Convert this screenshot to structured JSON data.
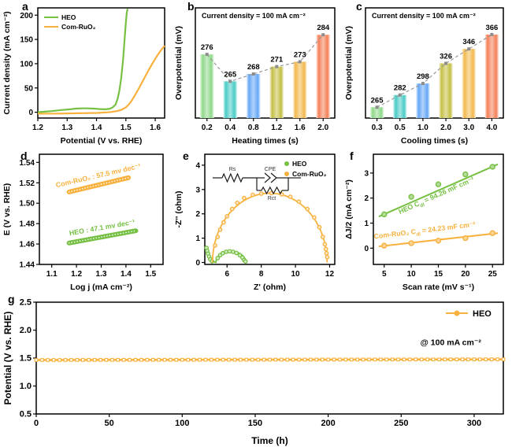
{
  "colors": {
    "heo_green": "#76c043",
    "ruo2_orange": "#f8b13d",
    "connector_gray": "#999999",
    "axis_black": "#000000"
  },
  "chart_data": [
    {
      "id": "a",
      "panel_label": "a",
      "type": "line",
      "xlabel": "Potential (V vs. RHE)",
      "ylabel": "Current density (mA cm⁻²)",
      "xlim": [
        1.2,
        1.632
      ],
      "ylim": [
        -12,
        215
      ],
      "xticks": [
        "1.2",
        "1.3",
        "1.4",
        "1.5",
        "1.6"
      ],
      "yticks": [
        "0",
        "50",
        "100",
        "150",
        "200"
      ],
      "legend": {
        "position": "top-left",
        "entries": [
          {
            "label": "HEO",
            "color": "#76c043"
          },
          {
            "label": "Com-RuO₂",
            "color": "#f8b13d"
          }
        ]
      },
      "series": [
        {
          "name": "HEO",
          "color": "#76c043",
          "x": [
            1.2,
            1.22,
            1.25,
            1.28,
            1.31,
            1.33,
            1.35,
            1.37,
            1.39,
            1.41,
            1.43,
            1.445,
            1.455,
            1.465,
            1.472,
            1.478,
            1.484,
            1.49,
            1.495,
            1.5,
            1.503,
            1.506
          ],
          "y": [
            0,
            1,
            2.5,
            4.5,
            6,
            7.5,
            8,
            8,
            7.5,
            6.5,
            6,
            7,
            10,
            16,
            28,
            45,
            70,
            105,
            145,
            185,
            205,
            213
          ]
        },
        {
          "name": "Com-RuO₂",
          "color": "#f8b13d",
          "x": [
            1.2,
            1.25,
            1.3,
            1.35,
            1.4,
            1.43,
            1.45,
            1.47,
            1.485,
            1.5,
            1.51,
            1.52,
            1.53,
            1.545,
            1.56,
            1.575,
            1.59,
            1.605,
            1.62,
            1.632
          ],
          "y": [
            -3,
            -3,
            -2.5,
            -2,
            -1.5,
            -0.5,
            0.5,
            2.5,
            5,
            10,
            16,
            24,
            34,
            50,
            67,
            84,
            100,
            115,
            128,
            137
          ]
        }
      ]
    },
    {
      "id": "b",
      "panel_label": "b",
      "type": "bar",
      "title": "Current density = 100 mA cm⁻²",
      "xlabel": "Heating times (s)",
      "ylabel": "Overpotential (mV)",
      "categories": [
        "0.2",
        "0.4",
        "0.8",
        "1.2",
        "1.6",
        "2.0"
      ],
      "values": [
        276,
        265,
        268,
        271,
        273,
        284
      ],
      "ylim": [
        250,
        295
      ],
      "bar_colors": [
        "#8ed98a",
        "#49cbc6",
        "#64a7f7",
        "#c4bf45",
        "#f2b84d",
        "#f57e56"
      ]
    },
    {
      "id": "c",
      "panel_label": "c",
      "type": "bar",
      "title": "Current density = 100 mA cm⁻²",
      "xlabel": "Cooling times (s)",
      "ylabel": "Overpotential (mV)",
      "categories": [
        "0.3",
        "0.5",
        "1.0",
        "2.0",
        "3.0",
        "4.0"
      ],
      "values": [
        265,
        282,
        298,
        326,
        346,
        366
      ],
      "ylim": [
        250,
        403
      ],
      "bar_colors": [
        "#8ed98a",
        "#49cbc6",
        "#64a7f7",
        "#c4bf45",
        "#f2b84d",
        "#f57e56"
      ]
    },
    {
      "id": "d",
      "panel_label": "d",
      "type": "tafel",
      "xlabel": "Log j (mA cm⁻²)",
      "ylabel": "E (V vs. RHE)",
      "xlim": [
        1.05,
        1.55
      ],
      "ylim": [
        1.44,
        1.548
      ],
      "xticks": [
        "1.1",
        "1.2",
        "1.3",
        "1.4",
        "1.5"
      ],
      "yticks": [
        "1.44",
        "1.46",
        "1.48",
        "1.50",
        "1.52",
        "1.54"
      ],
      "series": [
        {
          "name": "Com-RuO₂",
          "color": "#f8b13d",
          "x0": 1.17,
          "y0": 1.511,
          "x1": 1.41,
          "y1": 1.525,
          "label": "Com-RuO₂ : 57.5 mv dec⁻¹",
          "label_angle": -13
        },
        {
          "name": "HEO",
          "color": "#76c043",
          "x0": 1.17,
          "y0": 1.461,
          "x1": 1.44,
          "y1": 1.473,
          "label": "HEO : 47.1 mv dec⁻¹",
          "label_angle": -10
        }
      ]
    },
    {
      "id": "e",
      "panel_label": "e",
      "type": "nyquist",
      "xlabel": "Z' (ohm)",
      "ylabel": "-Z'' (ohm)",
      "xlim": [
        4.7,
        12.3
      ],
      "ylim": [
        -0.08,
        4.45
      ],
      "xticks": [
        "6",
        "8",
        "10",
        "12"
      ],
      "yticks": [
        "0",
        "1",
        "2",
        "3",
        "4"
      ],
      "legend": {
        "position": "top-right",
        "entries": [
          {
            "label": "HEO",
            "color": "#76c043"
          },
          {
            "label": "Com-RuO₂",
            "color": "#f8b13d"
          }
        ]
      },
      "inset": {
        "labels": {
          "rs": "Rs",
          "cpe": "CPE",
          "rct": "Rct"
        }
      },
      "series": [
        {
          "name": "HEO",
          "color": "#76c043",
          "fit_pre": [
            [
              4.78,
              0.62
            ],
            [
              4.85,
              0.45
            ],
            [
              4.92,
              0.3
            ],
            [
              5.0,
              0.17
            ],
            [
              5.1,
              0.07
            ],
            [
              5.25,
              0.02
            ]
          ],
          "semicircle": {
            "x0": 5.35,
            "x1": 7.1,
            "peak": 0.46
          },
          "points": [
            [
              4.8,
              0.6
            ],
            [
              4.84,
              0.48
            ],
            [
              4.89,
              0.36
            ],
            [
              4.95,
              0.24
            ],
            [
              5.02,
              0.13
            ],
            [
              5.12,
              0.05
            ],
            [
              5.45,
              0.18
            ],
            [
              5.6,
              0.3
            ],
            [
              5.75,
              0.38
            ],
            [
              5.95,
              0.44
            ],
            [
              6.15,
              0.46
            ],
            [
              6.35,
              0.44
            ],
            [
              6.55,
              0.39
            ],
            [
              6.75,
              0.3
            ],
            [
              6.9,
              0.2
            ],
            [
              7.0,
              0.1
            ],
            [
              7.08,
              0.04
            ]
          ]
        },
        {
          "name": "Com-RuO₂",
          "color": "#f8b13d",
          "semicircle": {
            "x0": 5.15,
            "x1": 11.85,
            "peak": 2.85
          },
          "points": [
            [
              5.3,
              0.7
            ],
            [
              5.45,
              1.05
            ],
            [
              5.6,
              1.35
            ],
            [
              5.8,
              1.65
            ],
            [
              6.0,
              1.9
            ],
            [
              6.3,
              2.2
            ],
            [
              6.6,
              2.45
            ],
            [
              7.0,
              2.65
            ],
            [
              7.5,
              2.78
            ],
            [
              8.0,
              2.83
            ],
            [
              8.6,
              2.85
            ],
            [
              9.2,
              2.8
            ],
            [
              9.7,
              2.7
            ],
            [
              10.2,
              2.5
            ],
            [
              10.7,
              2.2
            ],
            [
              11.1,
              1.85
            ],
            [
              11.4,
              1.45
            ],
            [
              11.6,
              1.05
            ],
            [
              11.72,
              0.75
            ],
            [
              11.78,
              0.55
            ],
            [
              11.82,
              0.38
            ],
            [
              11.86,
              0.22
            ]
          ]
        }
      ]
    },
    {
      "id": "f",
      "panel_label": "f",
      "type": "cdl",
      "xlabel": "Scan rate (mV s⁻¹)",
      "ylabel": "ΔJ/2 (mA cm⁻²)",
      "xlim": [
        3,
        27
      ],
      "ylim": [
        -0.65,
        3.75
      ],
      "xticks": [
        "5",
        "10",
        "15",
        "20",
        "25"
      ],
      "yticks": [
        "0",
        "1",
        "2",
        "3"
      ],
      "series": [
        {
          "name": "HEO",
          "color": "#76c043",
          "x": [
            5,
            10,
            15,
            20,
            25
          ],
          "y": [
            1.35,
            2.05,
            2.55,
            2.95,
            3.25
          ],
          "fit": {
            "x0": 4,
            "y0": 1.26,
            "x1": 26,
            "y1": 3.35
          },
          "label": "HEO C_dl_ = 94.26 mF cm⁻²",
          "label_angle": -24,
          "label_at": [
            14.8,
            2.02
          ]
        },
        {
          "name": "Com-RuO₂",
          "color": "#f8b13d",
          "x": [
            5,
            10,
            15,
            20,
            25
          ],
          "y": [
            0.1,
            0.2,
            0.3,
            0.4,
            0.6
          ],
          "fit": {
            "x0": 4,
            "y0": 0.07,
            "x1": 26,
            "y1": 0.6
          },
          "label": "Com-RuO₂ C_dl_ = 24.23 mF cm⁻²",
          "label_angle": -7,
          "label_at": [
            12.5,
            0.62
          ]
        }
      ]
    },
    {
      "id": "g",
      "panel_label": "g",
      "type": "stability",
      "xlabel": "Time (h)",
      "ylabel": "Potential (V vs. RHE)",
      "xlim": [
        0,
        320
      ],
      "ylim": [
        0.5,
        2.5
      ],
      "xticks": [
        "0",
        "50",
        "100",
        "150",
        "200",
        "250",
        "300"
      ],
      "yticks": [
        "0.5",
        "1.0",
        "1.5",
        "2.0",
        "2.5"
      ],
      "legend": {
        "position": "top-right",
        "entries": [
          {
            "label": "HEO",
            "color": "#f8b13d"
          }
        ]
      },
      "annotation": {
        "text": "@ 100 mA cm⁻²",
        "x": 284,
        "y": 1.73
      },
      "series": [
        {
          "name": "HEO",
          "color": "#f8b13d",
          "y_start": 1.465,
          "y_end": 1.478,
          "marker_step": 4
        }
      ]
    }
  ]
}
